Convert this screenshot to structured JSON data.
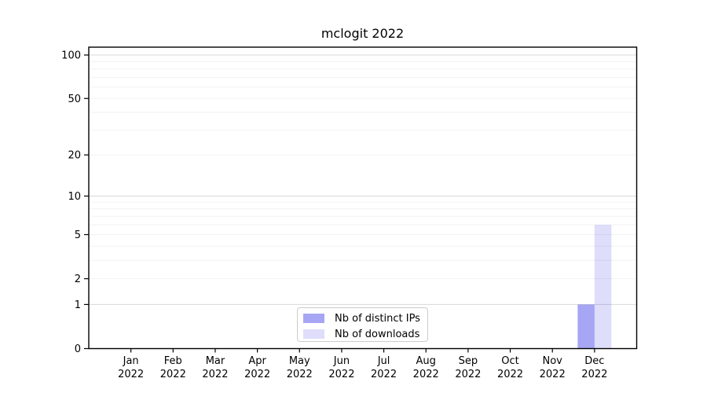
{
  "chart_data": {
    "type": "bar",
    "title": "mclogit 2022",
    "categories": [
      "Jan 2022",
      "Feb 2022",
      "Mar 2022",
      "Apr 2022",
      "May 2022",
      "Jun 2022",
      "Jul 2022",
      "Aug 2022",
      "Sep 2022",
      "Oct 2022",
      "Nov 2022",
      "Dec 2022"
    ],
    "series": [
      {
        "name": "Nb of distinct IPs",
        "color": "#0000e0",
        "opacity": 0.35,
        "values": [
          0,
          0,
          0,
          0,
          0,
          0,
          0,
          0,
          0,
          0,
          0,
          1
        ]
      },
      {
        "name": "Nb of downloads",
        "color": "#0000e0",
        "opacity": 0.13,
        "values": [
          0,
          0,
          0,
          0,
          0,
          0,
          0,
          0,
          0,
          0,
          0,
          6
        ]
      }
    ],
    "yscale": "log1p",
    "yticks": [
      0,
      1,
      2,
      5,
      10,
      20,
      50,
      100
    ],
    "ylim": [
      0,
      113
    ],
    "grid": {
      "enabled": true,
      "minor_color": "#f2f2f2",
      "major_color": "#d8d8d8"
    },
    "legend_position": "lower center (inside axes)",
    "axis_color": "#000000",
    "tick_label_color": "#000000"
  }
}
